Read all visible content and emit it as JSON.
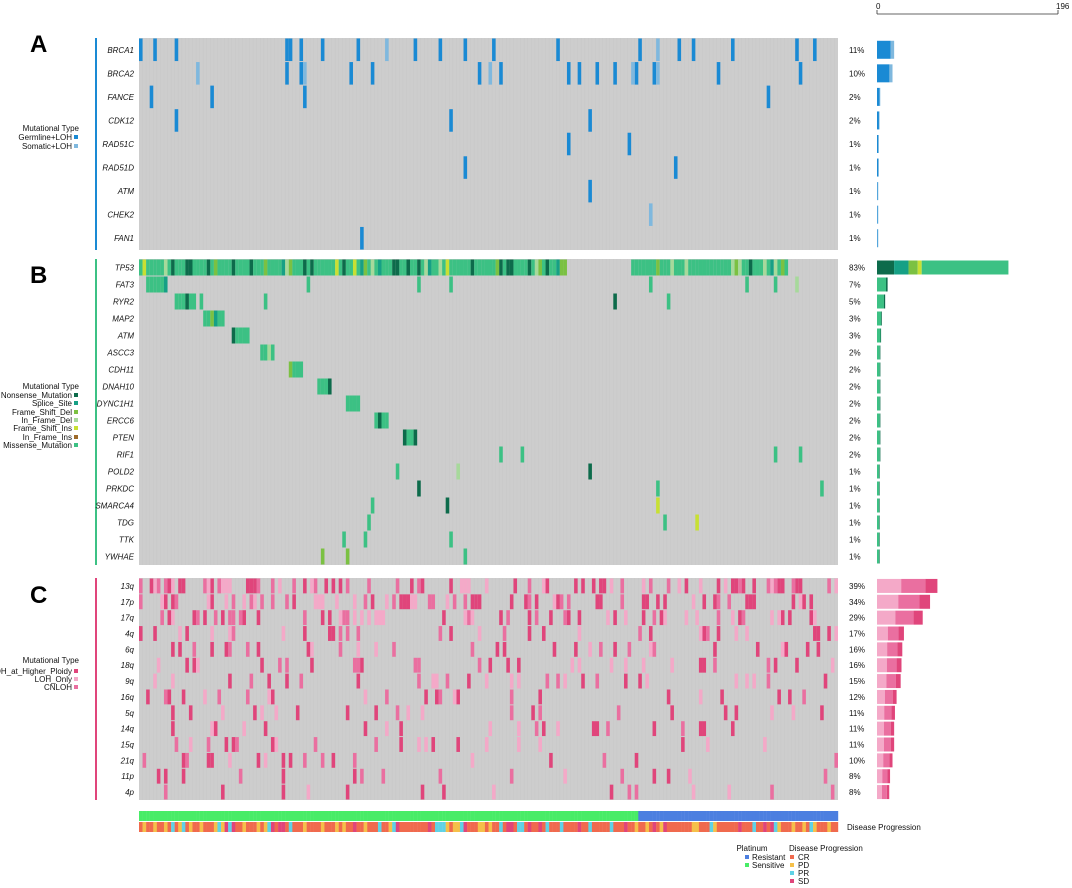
{
  "chart_data": {
    "type": "heatmap",
    "title": "",
    "scale": {
      "min": "0",
      "max": "196"
    },
    "panels": [
      {
        "label": "A",
        "legend_title": "Mutational Type",
        "legend": [
          {
            "name": "Germline+LOH",
            "color": "#1a8ad4"
          },
          {
            "name": "Somatic+LOH",
            "color": "#7fb8de"
          }
        ],
        "rows": [
          {
            "gene": "BRCA1",
            "pct": "11%",
            "count": 21
          },
          {
            "gene": "BRCA2",
            "pct": "10%",
            "count": 19
          },
          {
            "gene": "FANCE",
            "pct": "2%",
            "count": 4
          },
          {
            "gene": "CDK12",
            "pct": "2%",
            "count": 3
          },
          {
            "gene": "RAD51C",
            "pct": "1%",
            "count": 2
          },
          {
            "gene": "RAD51D",
            "pct": "1%",
            "count": 2
          },
          {
            "gene": "ATM",
            "pct": "1%",
            "count": 1
          },
          {
            "gene": "CHEK2",
            "pct": "1%",
            "count": 1
          },
          {
            "gene": "FAN1",
            "pct": "1%",
            "count": 1
          }
        ]
      },
      {
        "label": "B",
        "legend_title": "Mutational Type",
        "legend": [
          {
            "name": "Nonsense_Mutation",
            "color": "#0d6b4b"
          },
          {
            "name": "Splice_Site",
            "color": "#16a085"
          },
          {
            "name": "Frame_Shift_Del",
            "color": "#7bc142"
          },
          {
            "name": "In_Frame_Del",
            "color": "#a7d99b"
          },
          {
            "name": "Frame_Shift_Ins",
            "color": "#c8e033"
          },
          {
            "name": "In_Frame_Ins",
            "color": "#9e6b2a"
          },
          {
            "name": "Missense_Mutation",
            "color": "#3cc184"
          }
        ],
        "rows": [
          {
            "gene": "TP53",
            "pct": "83%",
            "count": 161
          },
          {
            "gene": "FAT3",
            "pct": "7%",
            "count": 13
          },
          {
            "gene": "RYR2",
            "pct": "5%",
            "count": 10
          },
          {
            "gene": "MAP2",
            "pct": "3%",
            "count": 6
          },
          {
            "gene": "ATM",
            "pct": "3%",
            "count": 5
          },
          {
            "gene": "ASCC3",
            "pct": "2%",
            "count": 4
          },
          {
            "gene": "CDH11",
            "pct": "2%",
            "count": 4
          },
          {
            "gene": "DNAH10",
            "pct": "2%",
            "count": 4
          },
          {
            "gene": "DYNC1H1",
            "pct": "2%",
            "count": 4
          },
          {
            "gene": "ERCC6",
            "pct": "2%",
            "count": 4
          },
          {
            "gene": "PTEN",
            "pct": "2%",
            "count": 4
          },
          {
            "gene": "RIF1",
            "pct": "2%",
            "count": 4
          },
          {
            "gene": "POLD2",
            "pct": "1%",
            "count": 3
          },
          {
            "gene": "PRKDC",
            "pct": "1%",
            "count": 3
          },
          {
            "gene": "SMARCA4",
            "pct": "1%",
            "count": 3
          },
          {
            "gene": "TDG",
            "pct": "1%",
            "count": 3
          },
          {
            "gene": "TTK",
            "pct": "1%",
            "count": 3
          },
          {
            "gene": "YWHAE",
            "pct": "1%",
            "count": 3
          }
        ]
      },
      {
        "label": "C",
        "legend_title": "Mutational Type",
        "legend": [
          {
            "name": "LOH_at_Higher_Ploidy",
            "color": "#e0457b"
          },
          {
            "name": "LOH_Only",
            "color": "#f4a9c8"
          },
          {
            "name": "CNLOH",
            "color": "#ea6fa0"
          }
        ],
        "rows": [
          {
            "gene": "13q",
            "pct": "39%",
            "count": 74
          },
          {
            "gene": "17p",
            "pct": "34%",
            "count": 65
          },
          {
            "gene": "17q",
            "pct": "29%",
            "count": 56
          },
          {
            "gene": "4q",
            "pct": "17%",
            "count": 33
          },
          {
            "gene": "6q",
            "pct": "16%",
            "count": 31
          },
          {
            "gene": "18q",
            "pct": "16%",
            "count": 30
          },
          {
            "gene": "9q",
            "pct": "15%",
            "count": 29
          },
          {
            "gene": "16q",
            "pct": "12%",
            "count": 24
          },
          {
            "gene": "5q",
            "pct": "11%",
            "count": 22
          },
          {
            "gene": "14q",
            "pct": "11%",
            "count": 21
          },
          {
            "gene": "15q",
            "pct": "11%",
            "count": 21
          },
          {
            "gene": "21q",
            "pct": "10%",
            "count": 19
          },
          {
            "gene": "11p",
            "pct": "8%",
            "count": 16
          },
          {
            "gene": "4p",
            "pct": "8%",
            "count": 15
          }
        ]
      }
    ],
    "annotation_tracks": [
      {
        "name": "Platinum",
        "show_label": false
      },
      {
        "name": "Disease Progression",
        "show_label": true
      }
    ],
    "annotation_legend": {
      "platinum": {
        "title": "Platinum",
        "items": [
          {
            "name": "Resistant",
            "color": "#4c7fe0"
          },
          {
            "name": "Sensitive",
            "color": "#48ec67"
          }
        ]
      },
      "progression": {
        "title": "Disease Progression",
        "items": [
          {
            "name": "CR",
            "color": "#f06a4e"
          },
          {
            "name": "PD",
            "color": "#f5c04a"
          },
          {
            "name": "PR",
            "color": "#5fd2e6"
          },
          {
            "name": "SD",
            "color": "#e0457b"
          }
        ]
      }
    },
    "background_color": "#cdcdcd"
  }
}
